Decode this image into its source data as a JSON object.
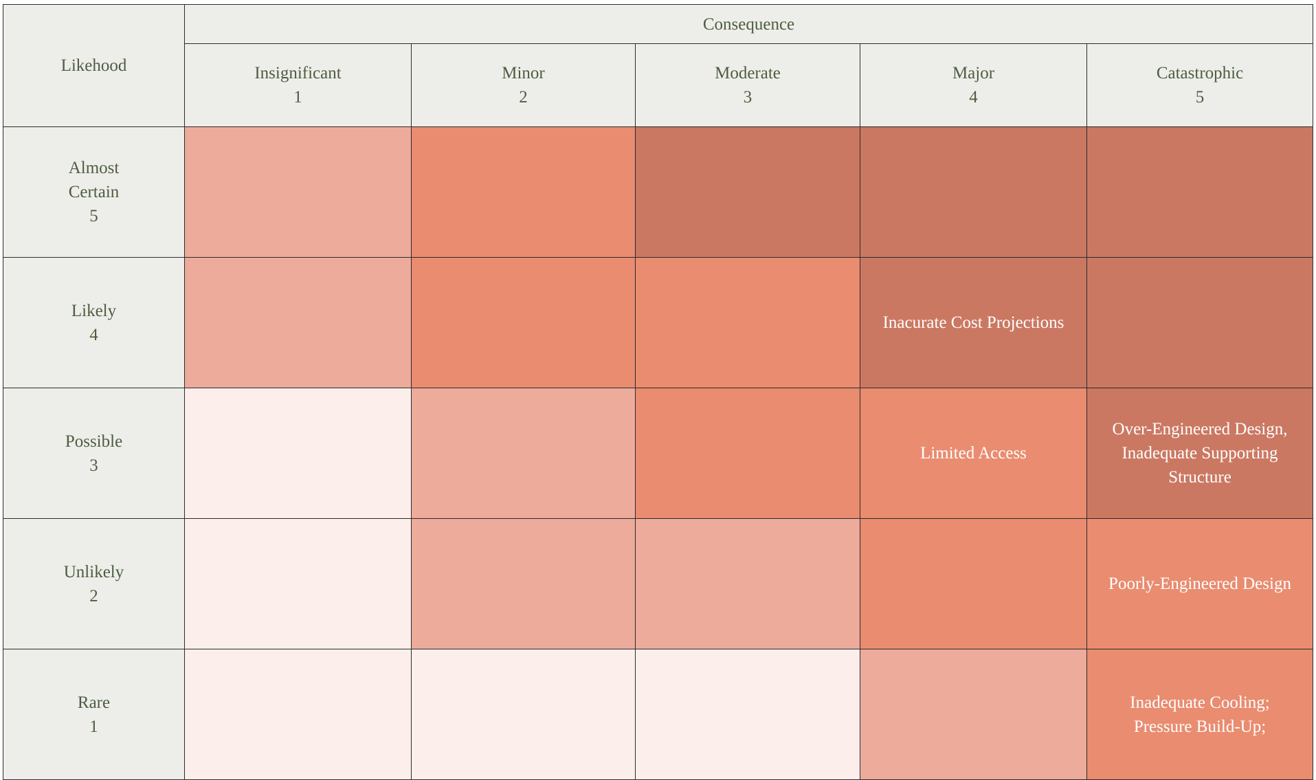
{
  "header": {
    "likelihood_label": "Likehood",
    "consequence_label": "Consequence"
  },
  "columns": [
    {
      "label": "Insignificant",
      "score": "1"
    },
    {
      "label": "Minor",
      "score": "2"
    },
    {
      "label": "Moderate",
      "score": "3"
    },
    {
      "label": "Major",
      "score": "4"
    },
    {
      "label": "Catastrophic",
      "score": "5"
    }
  ],
  "rows": [
    {
      "label_lines": [
        "Almost",
        "Certain"
      ],
      "score": "5",
      "cells": [
        {
          "level": 2,
          "lines": []
        },
        {
          "level": 3,
          "lines": []
        },
        {
          "level": 4,
          "lines": []
        },
        {
          "level": 4,
          "lines": []
        },
        {
          "level": 4,
          "lines": []
        }
      ]
    },
    {
      "label_lines": [
        "Likely"
      ],
      "score": "4",
      "cells": [
        {
          "level": 2,
          "lines": []
        },
        {
          "level": 3,
          "lines": []
        },
        {
          "level": 3,
          "lines": []
        },
        {
          "level": 4,
          "lines": [
            "Inacurate Cost Projections"
          ]
        },
        {
          "level": 4,
          "lines": []
        }
      ]
    },
    {
      "label_lines": [
        "Possible"
      ],
      "score": "3",
      "cells": [
        {
          "level": 1,
          "lines": []
        },
        {
          "level": 2,
          "lines": []
        },
        {
          "level": 3,
          "lines": []
        },
        {
          "level": 3,
          "lines": [
            "Limited Access"
          ]
        },
        {
          "level": 4,
          "lines": [
            "Over-Engineered Design,",
            "Inadequate Supporting",
            "Structure"
          ]
        }
      ]
    },
    {
      "label_lines": [
        "Unlikely"
      ],
      "score": "2",
      "cells": [
        {
          "level": 1,
          "lines": []
        },
        {
          "level": 2,
          "lines": []
        },
        {
          "level": 2,
          "lines": []
        },
        {
          "level": 3,
          "lines": []
        },
        {
          "level": 3,
          "lines": [
            "Poorly-Engineered Design"
          ]
        }
      ]
    },
    {
      "label_lines": [
        "Rare"
      ],
      "score": "1",
      "cells": [
        {
          "level": 1,
          "lines": []
        },
        {
          "level": 1,
          "lines": []
        },
        {
          "level": 1,
          "lines": []
        },
        {
          "level": 2,
          "lines": []
        },
        {
          "level": 3,
          "lines": [
            "Inadequate Cooling;",
            "Pressure Build-Up;"
          ]
        }
      ]
    }
  ],
  "colors": {
    "header_bg": "#edeee9",
    "header_text": "#4e5c41",
    "level_1": "#fcefeb",
    "level_2": "#edab9b",
    "level_3": "#e98c70",
    "level_4": "#cb7862",
    "cell_text": "#ffffff"
  }
}
